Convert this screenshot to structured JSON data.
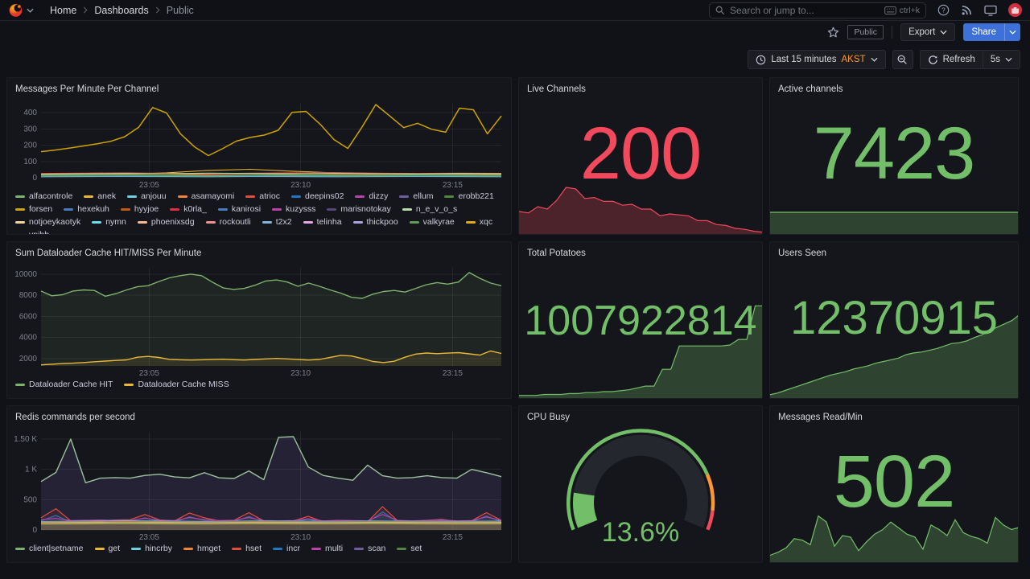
{
  "nav": {
    "breadcrumb": [
      "Home",
      "Dashboards",
      "Public"
    ],
    "search": {
      "placeholder": "Search or jump to...",
      "shortcut": "ctrl+k"
    }
  },
  "toolbar": {
    "tag": "Public",
    "export_label": "Export",
    "share_label": "Share"
  },
  "timebar": {
    "range_label": "Last 15 minutes",
    "timezone": "AKST",
    "refresh_label": "Refresh",
    "interval": "5s"
  },
  "panels": {
    "messages": {
      "title": "Messages Per Minute Per Channel"
    },
    "live": {
      "title": "Live Channels",
      "value": "200",
      "color": "#F2495C"
    },
    "active": {
      "title": "Active channels",
      "value": "7423",
      "color": "#73BF69"
    },
    "dataloader": {
      "title": "Sum Dataloader Cache HIT/MISS Per Minute"
    },
    "potatoes": {
      "title": "Total Potatoes",
      "value": "1007922814",
      "color": "#73BF69"
    },
    "users": {
      "title": "Users Seen",
      "value": "12370915",
      "color": "#73BF69"
    },
    "redis": {
      "title": "Redis commands per second"
    },
    "cpu": {
      "title": "CPU Busy",
      "value": "13.6%",
      "color": "#73BF69"
    },
    "msgs": {
      "title": "Messages Read/Min",
      "value": "502",
      "color": "#73BF69"
    }
  },
  "legends": {
    "messages": [
      {
        "label": "alfacontrole",
        "color": "#7EB26D"
      },
      {
        "label": "anek",
        "color": "#EAB839"
      },
      {
        "label": "anjouu",
        "color": "#6ED0E0"
      },
      {
        "label": "asamayomi",
        "color": "#EF843C"
      },
      {
        "label": "atrioc",
        "color": "#E24D42"
      },
      {
        "label": "deepins02",
        "color": "#1F78C1"
      },
      {
        "label": "dizzy",
        "color": "#BA43A9"
      },
      {
        "label": "ellum",
        "color": "#705DA0"
      },
      {
        "label": "erobb221",
        "color": "#508642"
      },
      {
        "label": "forsen",
        "color": "#CCA300"
      },
      {
        "label": "hexekuh",
        "color": "#447EBC"
      },
      {
        "label": "hyyjoe",
        "color": "#C15C17"
      },
      {
        "label": "k0rla_",
        "color": "#E02F44"
      },
      {
        "label": "kanirosi",
        "color": "#447EBC"
      },
      {
        "label": "kuzysss",
        "color": "#BA43A9"
      },
      {
        "label": "marisnotokay",
        "color": "#584477"
      },
      {
        "label": "n_e_v_o_s",
        "color": "#B7DBAB"
      },
      {
        "label": "notjoeykaotyk",
        "color": "#F4D598"
      },
      {
        "label": "nymn",
        "color": "#70DBED"
      },
      {
        "label": "phoenixsdg",
        "color": "#F9BA8F"
      },
      {
        "label": "rockoutli",
        "color": "#F29191"
      },
      {
        "label": "t2x2",
        "color": "#82B5D8"
      },
      {
        "label": "telinha",
        "color": "#E5A8E2"
      },
      {
        "label": "thickpoo",
        "color": "#AEA2E0"
      },
      {
        "label": "valkyrae",
        "color": "#629E51"
      },
      {
        "label": "xqc",
        "color": "#E5AC0E"
      },
      {
        "label": "ynihb",
        "color": "#64B0C8"
      }
    ],
    "dataloader": [
      {
        "label": "Dataloader Cache HIT",
        "color": "#7EB26D"
      },
      {
        "label": "Dataloader Cache MISS",
        "color": "#EAB839"
      }
    ],
    "redis": [
      {
        "label": "client|setname",
        "color": "#7EB26D"
      },
      {
        "label": "get",
        "color": "#EAB839"
      },
      {
        "label": "hincrby",
        "color": "#6ED0E0"
      },
      {
        "label": "hmget",
        "color": "#EF843C"
      },
      {
        "label": "hset",
        "color": "#E24D42"
      },
      {
        "label": "incr",
        "color": "#1F78C1"
      },
      {
        "label": "multi",
        "color": "#BA43A9"
      },
      {
        "label": "scan",
        "color": "#705DA0"
      },
      {
        "label": "set",
        "color": "#508642"
      }
    ]
  },
  "charts": {
    "messages": {
      "type": "line",
      "ylim": [
        0,
        455
      ],
      "yticks": [
        {
          "v": 0,
          "l": "0"
        },
        {
          "v": 100,
          "l": "100"
        },
        {
          "v": 200,
          "l": "200"
        },
        {
          "v": 300,
          "l": "300"
        },
        {
          "v": 400,
          "l": "400"
        }
      ],
      "xticks": [
        {
          "f": 0.235,
          "l": "23:05"
        },
        {
          "f": 0.564,
          "l": "23:10"
        },
        {
          "f": 0.894,
          "l": "23:15"
        }
      ],
      "series": [
        {
          "name": "forsen",
          "color": "#CCA300",
          "width": 1.5,
          "values": [
            160,
            170,
            182,
            195,
            208,
            224,
            252,
            310,
            432,
            398,
            270,
            190,
            136,
            178,
            225,
            248,
            262,
            292,
            402,
            408,
            330,
            235,
            180,
            310,
            450,
            380,
            308,
            335,
            298,
            280,
            428,
            418,
            270,
            380
          ]
        },
        {
          "name": "alfacontrole",
          "color": "#7EB26D",
          "values": [
            20,
            22,
            25,
            22,
            26,
            24,
            22,
            25,
            27,
            24,
            22,
            24
          ]
        },
        {
          "name": "anek",
          "color": "#EAB839",
          "values": [
            15,
            18,
            22,
            30,
            45,
            52,
            40,
            30,
            24,
            22,
            26,
            20
          ]
        },
        {
          "name": "atrioc",
          "color": "#E24D42",
          "values": [
            26,
            28,
            30,
            27,
            25,
            28,
            30,
            32,
            28,
            26,
            28,
            27
          ]
        },
        {
          "name": "n_e_v_o_s",
          "color": "#B7DBAB",
          "values": [
            22,
            24,
            26,
            24,
            28,
            26,
            24,
            27,
            25,
            23,
            26,
            24
          ]
        },
        {
          "name": "erobb221",
          "color": "#508642",
          "values": [
            16,
            18,
            20,
            22,
            18,
            16,
            20,
            22,
            19,
            17,
            18,
            17
          ]
        },
        {
          "name": "anjouu",
          "color": "#6ED0E0",
          "values": [
            10,
            12,
            11,
            13,
            12,
            14,
            12,
            11,
            13,
            12,
            11,
            12
          ]
        },
        {
          "name": "asamayomi",
          "color": "#EF843C",
          "values": [
            14,
            15,
            17,
            16,
            18,
            16,
            15,
            17,
            16,
            15,
            16,
            15
          ]
        },
        {
          "name": "deepins02",
          "color": "#1F78C1",
          "values": [
            8,
            9,
            10,
            9,
            8,
            10,
            9,
            8,
            9,
            10,
            9,
            8
          ]
        },
        {
          "name": "valkyrae",
          "color": "#629E51",
          "values": [
            12,
            14,
            16,
            14,
            12,
            15,
            17,
            14,
            13,
            15,
            14,
            13
          ]
        },
        {
          "name": "ynihb",
          "color": "#64B0C8",
          "values": [
            6,
            7,
            8,
            7,
            6,
            8,
            7,
            6,
            7,
            8,
            7,
            6
          ]
        }
      ]
    },
    "dataloader": {
      "type": "line",
      "ylim": [
        1300,
        10600
      ],
      "yticks": [
        {
          "v": 2000,
          "l": "2000"
        },
        {
          "v": 4000,
          "l": "4000"
        },
        {
          "v": 6000,
          "l": "6000"
        },
        {
          "v": 8000,
          "l": "8000"
        },
        {
          "v": 10000,
          "l": "10000"
        }
      ],
      "xticks": [
        {
          "f": 0.235,
          "l": "23:05"
        },
        {
          "f": 0.564,
          "l": "23:10"
        },
        {
          "f": 0.894,
          "l": "23:15"
        }
      ],
      "series": [
        {
          "name": "Dataloader Cache HIT",
          "color": "#7EB26D",
          "width": 1.4,
          "fill": "rgba(126,178,109,0.10)",
          "values": [
            8400,
            7950,
            8050,
            8400,
            8500,
            8450,
            7900,
            8150,
            8500,
            8800,
            8900,
            9300,
            9650,
            9850,
            10000,
            9850,
            9250,
            8700,
            8550,
            8650,
            8950,
            9350,
            9450,
            9250,
            8850,
            9150,
            8850,
            8500,
            8200,
            7800,
            7700,
            8100,
            8350,
            8450,
            8300,
            8650,
            9000,
            9200,
            9050,
            9250,
            10150,
            9600,
            9150,
            8900
          ]
        },
        {
          "name": "Dataloader Cache MISS",
          "color": "#EAB839",
          "width": 1.4,
          "fill": "rgba(234,184,57,0.10)",
          "values": [
            1400,
            1460,
            1520,
            1560,
            1620,
            1700,
            1760,
            1820,
            1870,
            2120,
            2200,
            2100,
            1920,
            1880,
            1860,
            1880,
            1900,
            1930,
            1890,
            1860,
            1910,
            1960,
            2010,
            1960,
            1900,
            1860,
            1910,
            2110,
            2300,
            2240,
            2000,
            1720,
            1620,
            1740,
            2120,
            2420,
            2520,
            2460,
            2510,
            2560,
            2440,
            2320,
            2720,
            2480
          ]
        }
      ]
    },
    "redis": {
      "type": "line",
      "ylim": [
        0,
        1620
      ],
      "yticks": [
        {
          "v": 0,
          "l": "0"
        },
        {
          "v": 500,
          "l": "500"
        },
        {
          "v": 1000,
          "l": "1 K"
        },
        {
          "v": 1500,
          "l": "1.50 K"
        }
      ],
      "xticks": [
        {
          "f": 0.235,
          "l": "23:05"
        },
        {
          "f": 0.564,
          "l": "23:10"
        },
        {
          "f": 0.894,
          "l": "23:15"
        }
      ],
      "series": [
        {
          "name": "set",
          "color": "#9CC29C",
          "width": 1.4,
          "fill": "rgba(103,85,160,0.20)",
          "values": [
            800,
            950,
            1500,
            780,
            855,
            865,
            855,
            900,
            920,
            875,
            860,
            945,
            860,
            850,
            975,
            830,
            1530,
            1540,
            1040,
            900,
            855,
            820,
            1070,
            895,
            855,
            865,
            895,
            865,
            855,
            1000,
            945,
            880
          ]
        },
        {
          "name": "incr",
          "color": "#1F78C1",
          "width": 1.1,
          "fill": "rgba(31,120,193,0.22)",
          "values": [
            150,
            240,
            130,
            140,
            135,
            140,
            145,
            200,
            140,
            135,
            215,
            160,
            135,
            140,
            220,
            135,
            130,
            135,
            175,
            125,
            140,
            135,
            125,
            300,
            135,
            130,
            140,
            150,
            130,
            135,
            230,
            140
          ]
        },
        {
          "name": "hset",
          "color": "#E24D42",
          "width": 1.2,
          "fill": "rgba(226,77,66,0.10)",
          "values": [
            200,
            350,
            150,
            160,
            150,
            165,
            170,
            255,
            165,
            150,
            280,
            200,
            150,
            160,
            285,
            150,
            140,
            150,
            225,
            135,
            160,
            150,
            135,
            385,
            155,
            140,
            160,
            175,
            140,
            150,
            285,
            160
          ]
        },
        {
          "name": "multi",
          "color": "#BA43A9",
          "width": 1.1,
          "values": [
            170,
            190,
            155,
            160,
            165,
            160,
            155,
            195,
            160,
            155,
            205,
            170,
            155,
            160,
            205,
            155,
            150,
            155,
            185,
            150,
            160,
            155,
            150,
            255,
            160,
            150,
            160,
            165,
            150,
            155,
            215,
            160
          ]
        },
        {
          "name": "hincrby",
          "color": "#6ED0E0",
          "width": 1.1,
          "values": [
            140,
            145,
            150,
            145,
            140,
            148,
            145,
            142,
            147,
            144,
            142,
            145
          ]
        },
        {
          "name": "scan",
          "color": "#705DA0",
          "width": 1.1,
          "values": [
            130,
            133,
            136,
            133,
            130,
            135,
            133,
            131,
            134,
            132,
            130,
            133
          ]
        },
        {
          "name": "get",
          "color": "#EAB839",
          "width": 1.2,
          "fill": "rgba(234,184,57,0.25)",
          "values": [
            120,
            125,
            130,
            125,
            120,
            128,
            125,
            122,
            126,
            124,
            122,
            125
          ]
        },
        {
          "name": "hmget",
          "color": "#EF843C",
          "width": 1.1,
          "values": [
            110,
            112,
            115,
            112,
            110,
            114,
            112,
            111,
            113,
            112,
            110,
            112
          ]
        },
        {
          "name": "client|setname",
          "color": "#7EB26D",
          "width": 1.2,
          "values": [
            95,
            100,
            105,
            100,
            98,
            102,
            100,
            99,
            103,
            100,
            98,
            100
          ]
        }
      ]
    }
  },
  "sparks": {
    "live": {
      "line": "#F2495C",
      "fill": "rgba(242,73,92,0.25)",
      "shape": [
        0.45,
        0.42,
        0.55,
        0.5,
        0.68,
        0.95,
        0.92,
        0.72,
        0.74,
        0.66,
        0.66,
        0.58,
        0.6,
        0.5,
        0.5,
        0.36,
        0.4,
        0.38,
        0.36,
        0.26,
        0.26,
        0.18,
        0.16,
        0.1,
        0.08,
        0.04,
        0.02
      ]
    },
    "active": {
      "line": "#73BF69",
      "fill": "rgba(115,191,105,0.28)",
      "shape": [
        1,
        1,
        1,
        1,
        1,
        1,
        1,
        1,
        1,
        1
      ]
    },
    "potatoes": {
      "line": "#73BF69",
      "fill": "rgba(115,191,105,0.28)",
      "shape": [
        0.02,
        0.02,
        0.02,
        0.03,
        0.03,
        0.03,
        0.04,
        0.04,
        0.05,
        0.05,
        0.06,
        0.06,
        0.07,
        0.08,
        0.1,
        0.12,
        0.12,
        0.3,
        0.3,
        0.55,
        0.55,
        0.55,
        0.55,
        0.55,
        0.55,
        0.56,
        0.62,
        0.62,
        0.98,
        0.98
      ]
    },
    "users": {
      "line": "#73BF69",
      "fill": "rgba(115,191,105,0.28)",
      "shape": [
        0.03,
        0.05,
        0.08,
        0.11,
        0.14,
        0.17,
        0.2,
        0.23,
        0.26,
        0.28,
        0.3,
        0.33,
        0.35,
        0.37,
        0.4,
        0.42,
        0.44,
        0.46,
        0.5,
        0.52,
        0.53,
        0.55,
        0.57,
        0.6,
        0.63,
        0.64,
        0.66,
        0.7,
        0.73,
        0.78,
        0.82,
        0.86,
        0.9,
        0.97
      ]
    },
    "msgs": {
      "line": "#73BF69",
      "fill": "rgba(115,191,105,0.28)",
      "shape": [
        0.08,
        0.12,
        0.18,
        0.3,
        0.28,
        0.22,
        0.6,
        0.52,
        0.2,
        0.34,
        0.32,
        0.14,
        0.26,
        0.36,
        0.42,
        0.52,
        0.44,
        0.36,
        0.32,
        0.16,
        0.48,
        0.42,
        0.34,
        0.55,
        0.38,
        0.33,
        0.3,
        0.24,
        0.58,
        0.48,
        0.42,
        0.45
      ]
    }
  },
  "gauge": {
    "cpu": {
      "min": 0,
      "max": 100,
      "value": 13.6,
      "track": "#24272D",
      "value_color": "#73BF69",
      "thresholds": [
        {
          "to": 0.8,
          "color": "#73BF69"
        },
        {
          "to": 0.93,
          "color": "#FF9830"
        },
        {
          "to": 1.0,
          "color": "#F2495C"
        }
      ]
    }
  }
}
